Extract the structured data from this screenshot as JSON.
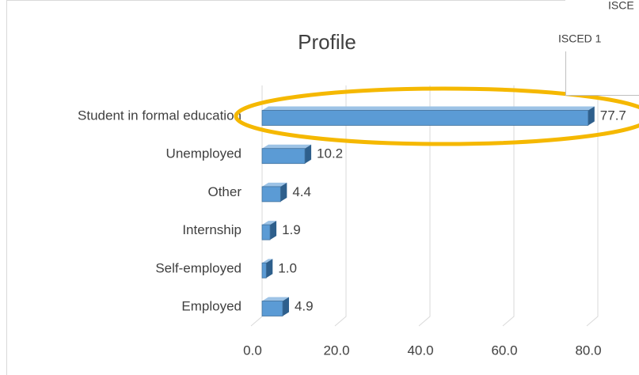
{
  "chart_data": {
    "type": "barh",
    "title": "Profile",
    "categories": [
      "Student in formal education",
      "Unemployed",
      "Other",
      "Internship",
      "Self-employed",
      "Employed"
    ],
    "values": [
      77.7,
      10.2,
      4.4,
      1.9,
      1.0,
      4.9
    ],
    "value_labels": [
      "77.7",
      "10.2",
      "4.4",
      "1.9",
      "1.0",
      "4.9"
    ],
    "color": "#5b9bd5",
    "xlim": [
      0,
      80
    ],
    "xticks": [
      {
        "value": 0,
        "label": "0.0"
      },
      {
        "value": 20,
        "label": "20.0"
      },
      {
        "value": 40,
        "label": "40.0"
      },
      {
        "value": 60,
        "label": "60.0"
      },
      {
        "value": 80,
        "label": "80.0"
      }
    ],
    "grid": true,
    "annotations": [
      "ISCE",
      "ISCED 1"
    ]
  }
}
